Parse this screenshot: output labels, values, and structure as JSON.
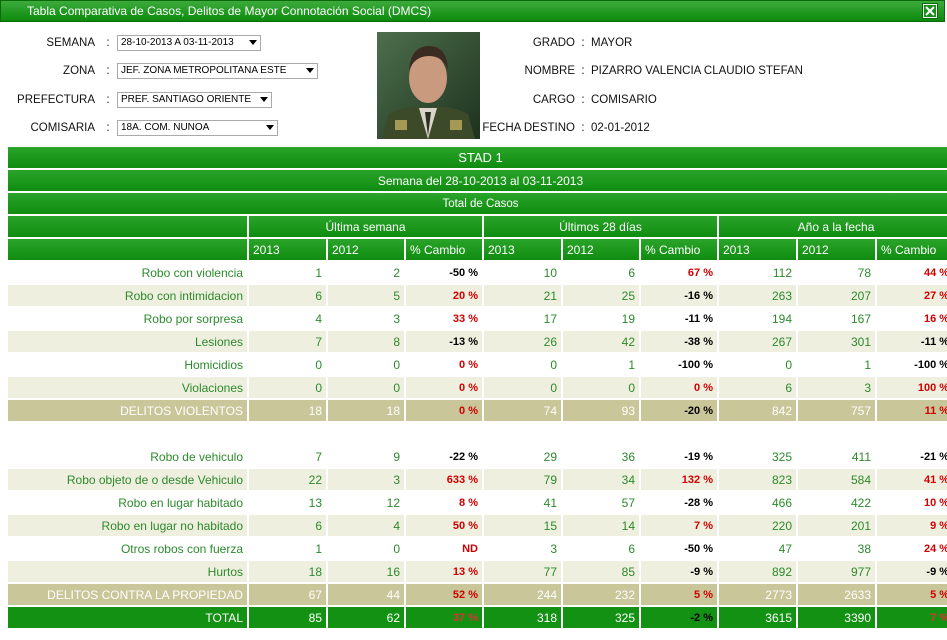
{
  "header": {
    "title": "Tabla Comparativa de Casos, Delitos de Mayor Connotación Social (DMCS)"
  },
  "filters": [
    {
      "label": "SEMANA",
      "value": "28-10-2013 A 03-11-2013"
    },
    {
      "label": "ZONA",
      "value": "JEF. ZONA METROPOLITANA ESTE"
    },
    {
      "label": "PREFECTURA",
      "value": "PREF. SANTIAGO ORIENTE"
    },
    {
      "label": "COMISARIA",
      "value": "18A. COM. NUNOA"
    }
  ],
  "officer": [
    {
      "label": "GRADO",
      "value": "MAYOR"
    },
    {
      "label": "NOMBRE",
      "value": "PIZARRO VALENCIA CLAUDIO STEFAN"
    },
    {
      "label": "CARGO",
      "value": "COMISARIO"
    },
    {
      "label": "FECHA DESTINO",
      "value": "02-01-2012"
    }
  ],
  "table": {
    "title": "STAD 1",
    "subtitle": "Semana del 28-10-2013 al 03-11-2013",
    "caption": "Total de Casos",
    "groups": [
      "Última semana",
      "Últimos 28 días",
      "Año a la fecha"
    ],
    "columns": [
      "2013",
      "2012",
      "% Cambio"
    ],
    "sections": [
      {
        "rows": [
          {
            "label": "Robo con violencia",
            "cells": [
              1,
              2,
              "-50 %",
              10,
              6,
              "67 %",
              112,
              78,
              "44 %"
            ]
          },
          {
            "label": "Robo con intimidacion",
            "cells": [
              6,
              5,
              "20 %",
              21,
              25,
              "-16 %",
              263,
              207,
              "27 %"
            ]
          },
          {
            "label": "Robo por sorpresa",
            "cells": [
              4,
              3,
              "33 %",
              17,
              19,
              "-11 %",
              194,
              167,
              "16 %"
            ]
          },
          {
            "label": "Lesiones",
            "cells": [
              7,
              8,
              "-13 %",
              26,
              42,
              "-38 %",
              267,
              301,
              "-11 %"
            ]
          },
          {
            "label": "Homicidios",
            "cells": [
              0,
              0,
              "0 %",
              0,
              1,
              "-100 %",
              0,
              1,
              "-100 %"
            ]
          },
          {
            "label": "Violaciones",
            "cells": [
              0,
              0,
              "0 %",
              0,
              0,
              "0 %",
              6,
              3,
              "100 %"
            ]
          }
        ],
        "subtotal": {
          "label": "DELITOS VIOLENTOS",
          "cells": [
            18,
            18,
            "0 %",
            74,
            93,
            "-20 %",
            842,
            757,
            "11 %"
          ]
        }
      },
      {
        "rows": [
          {
            "label": "Robo de vehiculo",
            "cells": [
              7,
              9,
              "-22 %",
              29,
              36,
              "-19 %",
              325,
              411,
              "-21 %"
            ]
          },
          {
            "label": "Robo objeto de o desde Vehiculo",
            "cells": [
              22,
              3,
              "633 %",
              79,
              34,
              "132 %",
              823,
              584,
              "41 %"
            ]
          },
          {
            "label": "Robo en lugar habitado",
            "cells": [
              13,
              12,
              "8 %",
              41,
              57,
              "-28 %",
              466,
              422,
              "10 %"
            ]
          },
          {
            "label": "Robo en lugar no habitado",
            "cells": [
              6,
              4,
              "50 %",
              15,
              14,
              "7 %",
              220,
              201,
              "9 %"
            ]
          },
          {
            "label": "Otros robos con fuerza",
            "cells": [
              1,
              0,
              "ND",
              3,
              6,
              "-50 %",
              47,
              38,
              "24 %"
            ]
          },
          {
            "label": "Hurtos",
            "cells": [
              18,
              16,
              "13 %",
              77,
              85,
              "-9 %",
              892,
              977,
              "-9 %"
            ]
          }
        ],
        "subtotal": {
          "label": "DELITOS CONTRA LA PROPIEDAD",
          "cells": [
            67,
            44,
            "52 %",
            244,
            232,
            "5 %",
            2773,
            2633,
            "5 %"
          ]
        }
      }
    ],
    "total": {
      "label": "TOTAL",
      "cells": [
        85,
        62,
        "37 %",
        318,
        325,
        "-2 %",
        3615,
        3390,
        "7 %"
      ]
    }
  }
}
